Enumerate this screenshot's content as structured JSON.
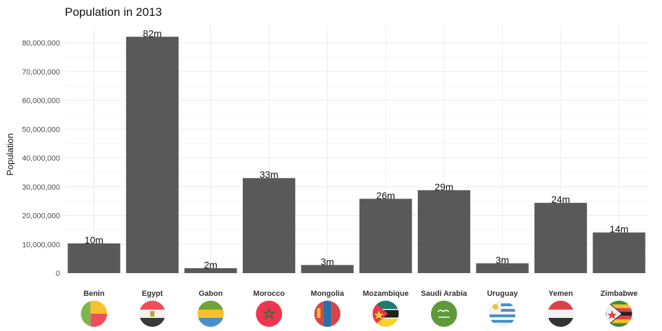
{
  "chart_data": {
    "type": "bar",
    "title": "Population in 2013",
    "xlabel": "",
    "ylabel": "Population",
    "ylim": [
      0,
      86000000
    ],
    "yticks": [
      0,
      10000000,
      20000000,
      30000000,
      40000000,
      50000000,
      60000000,
      70000000,
      80000000
    ],
    "ytick_labels": [
      "0",
      "10,000,000",
      "20,000,000",
      "30,000,000",
      "40,000,000",
      "50,000,000",
      "60,000,000",
      "70,000,000",
      "80,000,000"
    ],
    "categories": [
      "Benin",
      "Egypt",
      "Gabon",
      "Morocco",
      "Mongolia",
      "Mozambique",
      "Saudi Arabia",
      "Uruguay",
      "Yemen",
      "Zimbabwe"
    ],
    "values": [
      10300000,
      82100000,
      1700000,
      33000000,
      2800000,
      25800000,
      28800000,
      3400000,
      24400000,
      14100000
    ],
    "data_labels": [
      "10m",
      "82m",
      "2m",
      "33m",
      "3m",
      "26m",
      "29m",
      "3m",
      "24m",
      "14m"
    ],
    "bar_color": "#595959",
    "grid": true,
    "legend": "none",
    "flag_icons": [
      "benin-flag-icon",
      "egypt-flag-icon",
      "gabon-flag-icon",
      "morocco-flag-icon",
      "mongolia-flag-icon",
      "mozambique-flag-icon",
      "saudi-arabia-flag-icon",
      "uruguay-flag-icon",
      "yemen-flag-icon",
      "zimbabwe-flag-icon"
    ]
  }
}
